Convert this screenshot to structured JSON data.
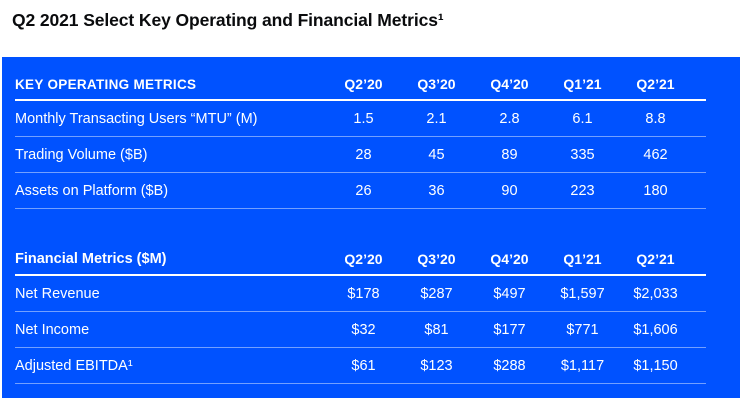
{
  "title": "Q2 2021 Select Key Operating and Financial Metrics¹",
  "colors": {
    "page_background": "#ffffff",
    "panel_background": "#0052ff",
    "title_text": "#0a0b0d",
    "table_text": "#ffffff",
    "header_underline": "#ffffff",
    "row_divider": "rgba(255,255,255,0.45)"
  },
  "tables": [
    {
      "header": "KEY OPERATING METRICS",
      "quarters": [
        "Q2’20",
        "Q3’20",
        "Q4’20",
        "Q1’21",
        "Q2’21"
      ],
      "rows": [
        {
          "label": "Monthly Transacting Users “MTU” (M)",
          "values": [
            "1.5",
            "2.1",
            "2.8",
            "6.1",
            "8.8"
          ]
        },
        {
          "label": "Trading Volume ($B)",
          "values": [
            "28",
            "45",
            "89",
            "335",
            "462"
          ]
        },
        {
          "label": "Assets on Platform ($B)",
          "values": [
            "26",
            "36",
            "90",
            "223",
            "180"
          ]
        }
      ]
    },
    {
      "header": "Financial Metrics ($M)",
      "quarters": [
        "Q2’20",
        "Q3’20",
        "Q4’20",
        "Q1’21",
        "Q2’21"
      ],
      "rows": [
        {
          "label": "Net Revenue",
          "values": [
            "$178",
            "$287",
            "$497",
            "$1,597",
            "$2,033"
          ]
        },
        {
          "label": "Net Income",
          "values": [
            "$32",
            "$81",
            "$177",
            "$771",
            "$1,606"
          ]
        },
        {
          "label": "Adjusted EBITDA¹",
          "values": [
            "$61",
            "$123",
            "$288",
            "$1,117",
            "$1,150"
          ]
        }
      ]
    }
  ]
}
